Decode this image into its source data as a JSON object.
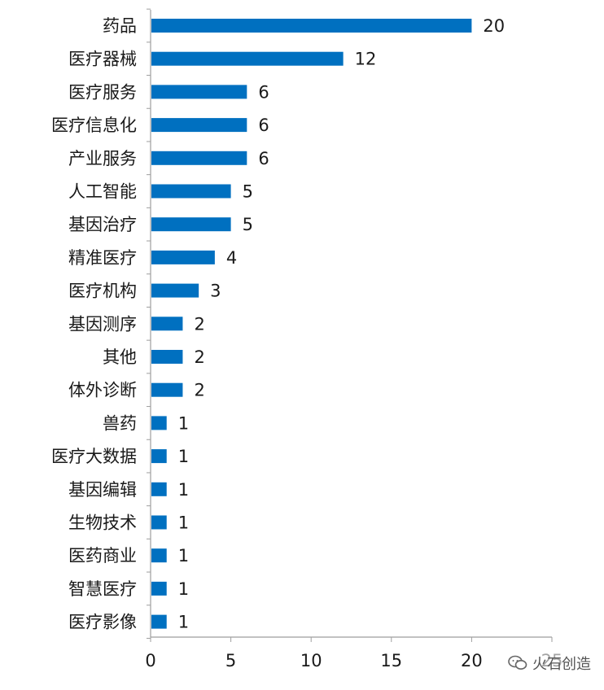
{
  "chart_data": {
    "type": "bar",
    "orientation": "horizontal",
    "categories": [
      "药品",
      "医疗器械",
      "医疗服务",
      "医疗信息化",
      "产业服务",
      "人工智能",
      "基因治疗",
      "精准医疗",
      "医疗机构",
      "基因测序",
      "其他",
      "体外诊断",
      "兽药",
      "医疗大数据",
      "基因编辑",
      "生物技术",
      "医药商业",
      "智慧医疗",
      "医疗影像"
    ],
    "values": [
      20,
      12,
      6,
      6,
      6,
      5,
      5,
      4,
      3,
      2,
      2,
      2,
      1,
      1,
      1,
      1,
      1,
      1,
      1
    ],
    "xlim": [
      0,
      25
    ],
    "xticks": [
      0,
      5,
      10,
      15,
      20,
      25
    ],
    "grid": false,
    "legend": "none",
    "bar_color": "#0070C0",
    "data_labels": true
  },
  "watermark": {
    "text": "火石创造",
    "icon": "wechat-icon"
  }
}
